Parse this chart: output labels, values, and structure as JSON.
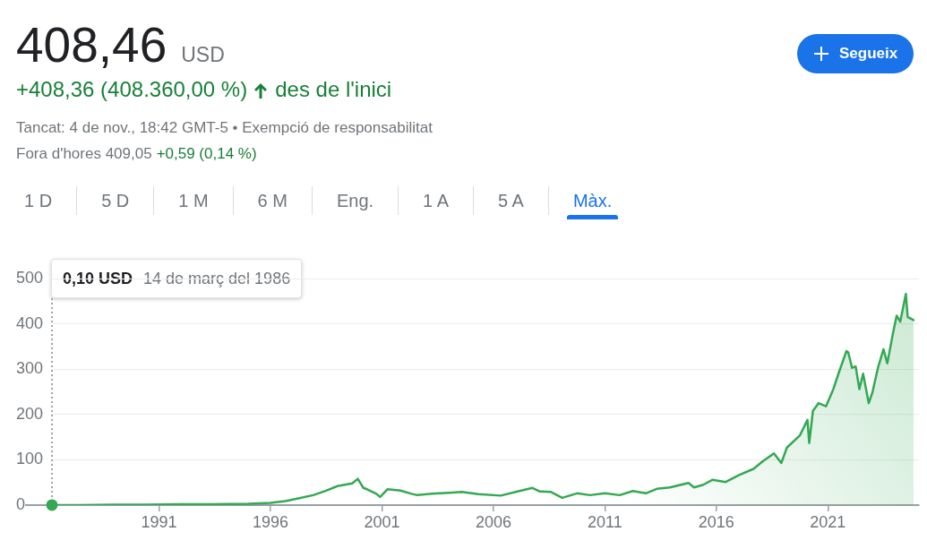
{
  "chart_data": {
    "type": "area",
    "title": "408,46",
    "subtitle": "USD",
    "annotations": [
      "+408,36 (408.360,00 %)",
      "des de l'inici",
      "Tancat: 4 de nov., 18:42 GMT-5 • Exempció de responsabilitat",
      "Fora d'hores 409,05",
      "+0,59 (0,14 %)",
      "Segueix",
      "1 D",
      "5 D",
      "1 M",
      "6 M",
      "Eng.",
      "1 A",
      "5 A",
      "Màx.",
      "0,10 USD",
      "14 de març del 1986"
    ],
    "x": [
      "1986-03-14",
      "1987-06",
      "1989-01",
      "1990-06",
      "1992-01",
      "1993-06",
      "1995-01",
      "1996-01",
      "1996-09",
      "1997-04",
      "1997-12",
      "1998-07",
      "1999-01",
      "1999-09",
      "1999-12",
      "2000-03",
      "2000-05",
      "2000-10",
      "2000-12",
      "2001-04",
      "2001-11",
      "2002-05",
      "2002-08",
      "2003-04",
      "2004-01",
      "2004-08",
      "2005-05",
      "2006-05",
      "2007-01",
      "2007-10",
      "2008-02",
      "2008-08",
      "2009-02",
      "2009-10",
      "2010-05",
      "2011-01",
      "2011-09",
      "2012-04",
      "2012-11",
      "2013-05",
      "2013-12",
      "2014-10",
      "2015-01",
      "2015-06",
      "2015-11",
      "2016-06",
      "2017-01",
      "2017-09",
      "2018-02",
      "2018-08",
      "2018-12",
      "2019-03",
      "2019-10",
      "2020-02",
      "2020-03",
      "2020-05",
      "2020-08",
      "2020-12",
      "2021-04",
      "2021-07",
      "2021-11",
      "2021-12",
      "2022-02",
      "2022-04",
      "2022-06",
      "2022-08",
      "2022-11",
      "2023-01",
      "2023-04",
      "2023-07",
      "2023-09",
      "2023-12",
      "2024-02",
      "2024-04",
      "2024-07",
      "2024-08",
      "2024-10",
      "2024-11-04"
    ],
    "values": [
      0.1,
      0,
      1,
      1,
      2,
      2,
      3,
      5,
      9,
      15,
      22,
      32,
      42,
      48,
      58,
      38,
      35,
      25,
      18,
      35,
      32,
      25,
      22,
      25,
      27,
      29,
      24,
      21,
      29,
      38,
      30,
      29,
      16,
      26,
      22,
      26,
      22,
      31,
      26,
      36,
      39,
      49,
      39,
      45,
      56,
      51,
      66,
      80,
      97,
      114,
      93,
      127,
      154,
      188,
      137,
      208,
      225,
      218,
      256,
      293,
      340,
      337,
      303,
      306,
      256,
      290,
      225,
      249,
      303,
      344,
      313,
      378,
      418,
      405,
      466,
      415,
      411,
      408.46
    ],
    "color": "#34a853",
    "xlim": [
      "1986-03-14",
      "2025-02"
    ],
    "xticks": [
      "1991",
      "1996",
      "2001",
      "2006",
      "2011",
      "2016",
      "2021"
    ],
    "ylim": [
      0,
      500
    ],
    "yticks": [
      0,
      100,
      200,
      300,
      400,
      500
    ],
    "grid": "y"
  }
}
